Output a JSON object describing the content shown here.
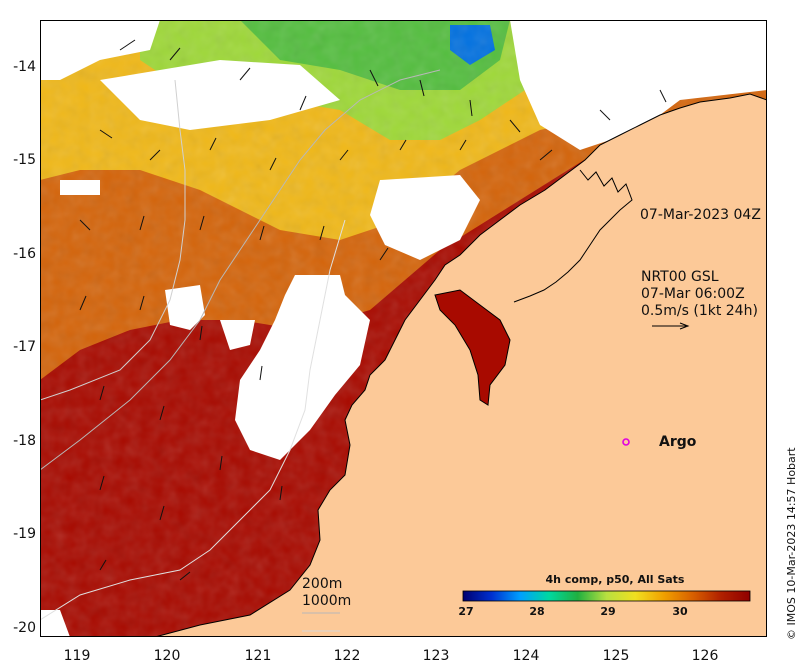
{
  "map": {
    "y_ticks": [
      "-14",
      "-15",
      "-16",
      "-17",
      "-18",
      "-19",
      "-20"
    ],
    "x_ticks": [
      "119",
      "120",
      "121",
      "122",
      "123",
      "124",
      "125",
      "126"
    ],
    "labels": {
      "image_time": "07-Mar-2023 04Z",
      "current_product": "NRT00 GSL",
      "current_time": "07-Mar 06:00Z",
      "vector_scale": "0.5m/s (1kt 24h)",
      "argo": "Argo",
      "isobath_200": "200m",
      "isobath_1000": "1000m",
      "credit": "© IMOS 10-Mar-2023 14:57 Hobart"
    },
    "colorbar": {
      "title": "4h comp, p50, All Sats",
      "ticks": [
        "27",
        "28",
        "29",
        "30"
      ],
      "colors": [
        "#000070",
        "#0030d0",
        "#00a0ff",
        "#00d8a0",
        "#20b040",
        "#b8e040",
        "#f0e020",
        "#f0a000",
        "#d86000",
        "#b02000",
        "#900000"
      ]
    },
    "colors": {
      "land": "#fcc998",
      "warm": "#a80a00",
      "mid": "#d4640a",
      "cool": "#f0c010",
      "coolest": "#7cd040",
      "argo": "#e000e0"
    }
  }
}
